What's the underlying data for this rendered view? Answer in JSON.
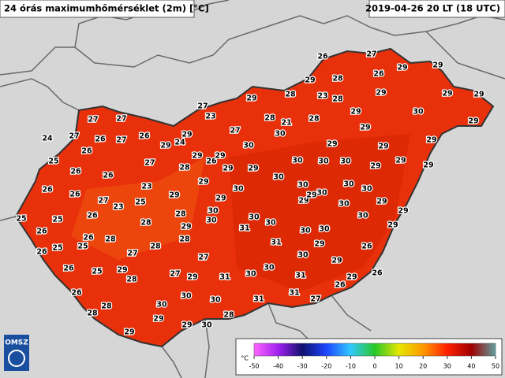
{
  "header": {
    "title": "24 órás maximumhőmérséklet (2m) [°C]",
    "timestamp": "2019-04-26 20 LT (18 UTC)"
  },
  "logo": "OMSZ",
  "stations": [
    26,
    27,
    29,
    29,
    26,
    29,
    28,
    28,
    23,
    28,
    29,
    27,
    23,
    28,
    21,
    28,
    30,
    27,
    30,
    29,
    29,
    29,
    29,
    29,
    29,
    29,
    29,
    29,
    27,
    27,
    27,
    24,
    26,
    27,
    26,
    29,
    24,
    29,
    29,
    26,
    29,
    30,
    26,
    25,
    26,
    26,
    27,
    28,
    29,
    29,
    30,
    30,
    30,
    30,
    29,
    29,
    29,
    29,
    30,
    29,
    29,
    23,
    26,
    26,
    27,
    23,
    25,
    28,
    25,
    25,
    26,
    28,
    30,
    30,
    30,
    31,
    30,
    29,
    30,
    29,
    30,
    30,
    30,
    30,
    29,
    30,
    29,
    29,
    26,
    26,
    28,
    25,
    25,
    27,
    28,
    29,
    28,
    30,
    30,
    31,
    30,
    29,
    29,
    26,
    26,
    26,
    25,
    29,
    27,
    27,
    28,
    29,
    31,
    30,
    30,
    31,
    29,
    26,
    26,
    26,
    28,
    30,
    30,
    30,
    31,
    31,
    27,
    28,
    29,
    29,
    30,
    28,
    29
  ],
  "legend": {
    "unit": "°C",
    "ticks": [
      -50,
      -40,
      -30,
      -20,
      -10,
      0,
      10,
      20,
      30,
      40,
      50
    ],
    "colors": [
      "#ff66ff",
      "#a020f0",
      "#10106e",
      "#1e46ff",
      "#32c8ff",
      "#28c828",
      "#e6e600",
      "#ff9900",
      "#ff2000",
      "#a00000",
      "#60a0a0"
    ]
  }
}
